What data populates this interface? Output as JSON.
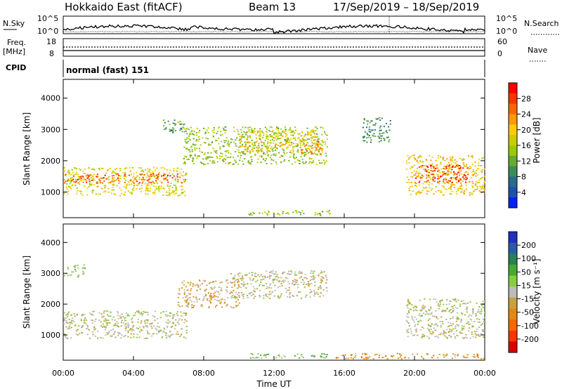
{
  "header": {
    "title": "Hokkaido East (fitACF)",
    "beam": "Beam 13",
    "dates": "17/Sep/2019 – 18/Sep/2019"
  },
  "aux_panels": {
    "nsky_label": "N.Sky",
    "nsky_ticks": [
      "10^5",
      "10^0"
    ],
    "nsearch_label": "N.Search",
    "nsearch_ticks": [
      "10^5",
      "10^0"
    ],
    "freq_label": "Freq.",
    "freq_unit": "[MHz]",
    "freq_ticks": [
      "18",
      "8"
    ],
    "nave_label": "Nave",
    "nave_ticks": [
      "60",
      "0"
    ],
    "cpid_label": "CPID",
    "cpid_value": "normal (fast) 151"
  },
  "x_axis": {
    "label": "Time UT",
    "ticks": [
      "00:00",
      "04:00",
      "08:00",
      "12:00",
      "16:00",
      "20:00",
      "00:00"
    ]
  },
  "colorbars": {
    "power": {
      "label": "Power [dB]",
      "ticks": [
        "28",
        "24",
        "20",
        "16",
        "12",
        "8",
        "4"
      ],
      "colors": [
        "#ff0000",
        "#ff3300",
        "#ff6600",
        "#ff9900",
        "#ffcc00",
        "#cccc00",
        "#99cc00",
        "#66aa33",
        "#3c8c5a",
        "#2a6a8a",
        "#1f4fae",
        "#0020ff"
      ]
    },
    "velocity": {
      "label": "Velocity [m s⁻¹]",
      "ticks": [
        "200",
        "100",
        "50",
        "15",
        "-15",
        "-50",
        "-100",
        "-200"
      ],
      "colors": [
        "#2030c0",
        "#2a5aa8",
        "#2a8050",
        "#44aa33",
        "#88cc44",
        "#bbbbbb",
        "#c8a040",
        "#e08a10",
        "#ff6600",
        "#ff3300",
        "#e00000"
      ]
    }
  },
  "chart_data": [
    {
      "type": "heatmap",
      "title": "Power",
      "xlabel": "Time UT",
      "ylabel": "Slant Range [km]",
      "xlim": [
        0,
        24
      ],
      "ylim": [
        180,
        4600
      ],
      "yticks": [
        1000,
        2000,
        3000,
        4000
      ],
      "colorbar": "Power [dB]",
      "vlim": [
        0,
        32
      ],
      "regions": [
        {
          "t0": 0.0,
          "t1": 7.0,
          "r0": 900,
          "r1": 1800,
          "level": 18
        },
        {
          "t0": 0.0,
          "t1": 7.0,
          "r0": 1300,
          "r1": 1600,
          "level": 26
        },
        {
          "t0": 5.5,
          "t1": 6.9,
          "r0": 2900,
          "r1": 3350,
          "level": 10
        },
        {
          "t0": 6.8,
          "t1": 15.0,
          "r0": 1900,
          "r1": 3100,
          "level": 14
        },
        {
          "t0": 10.0,
          "t1": 14.5,
          "r0": 2300,
          "r1": 3000,
          "level": 20
        },
        {
          "t0": 13.5,
          "t1": 14.8,
          "r0": 2200,
          "r1": 2700,
          "level": 24
        },
        {
          "t0": 10.5,
          "t1": 15.2,
          "r0": 270,
          "r1": 430,
          "level": 14
        },
        {
          "t0": 17.0,
          "t1": 18.6,
          "r0": 2600,
          "r1": 3400,
          "level": 9
        },
        {
          "t0": 19.5,
          "t1": 24.0,
          "r0": 900,
          "r1": 2200,
          "level": 20
        },
        {
          "t0": 20.0,
          "t1": 23.0,
          "r0": 1300,
          "r1": 1900,
          "level": 28
        }
      ]
    },
    {
      "type": "heatmap",
      "title": "Velocity",
      "xlabel": "Time UT",
      "ylabel": "Slant Range [km]",
      "xlim": [
        0,
        24
      ],
      "ylim": [
        180,
        4600
      ],
      "yticks": [
        1000,
        2000,
        3000,
        4000
      ],
      "colorbar": "Velocity [m s⁻¹]",
      "vlim": [
        -200,
        200
      ],
      "regions": [
        {
          "t0": 0.0,
          "t1": 7.0,
          "r0": 900,
          "r1": 1800,
          "level": 0
        },
        {
          "t0": 6.5,
          "t1": 10.0,
          "r0": 1900,
          "r1": 2800,
          "level": -40
        },
        {
          "t0": 9.5,
          "t1": 15.0,
          "r0": 2200,
          "r1": 3100,
          "level": -10
        },
        {
          "t0": 0.0,
          "t1": 1.2,
          "r0": 2900,
          "r1": 3300,
          "level": 30
        },
        {
          "t0": 10.5,
          "t1": 15.2,
          "r0": 270,
          "r1": 430,
          "level": 40
        },
        {
          "t0": 15.5,
          "t1": 24.0,
          "r0": 240,
          "r1": 420,
          "level": -60
        },
        {
          "t0": 19.5,
          "t1": 24.0,
          "r0": 900,
          "r1": 2200,
          "level": 0
        }
      ]
    }
  ]
}
